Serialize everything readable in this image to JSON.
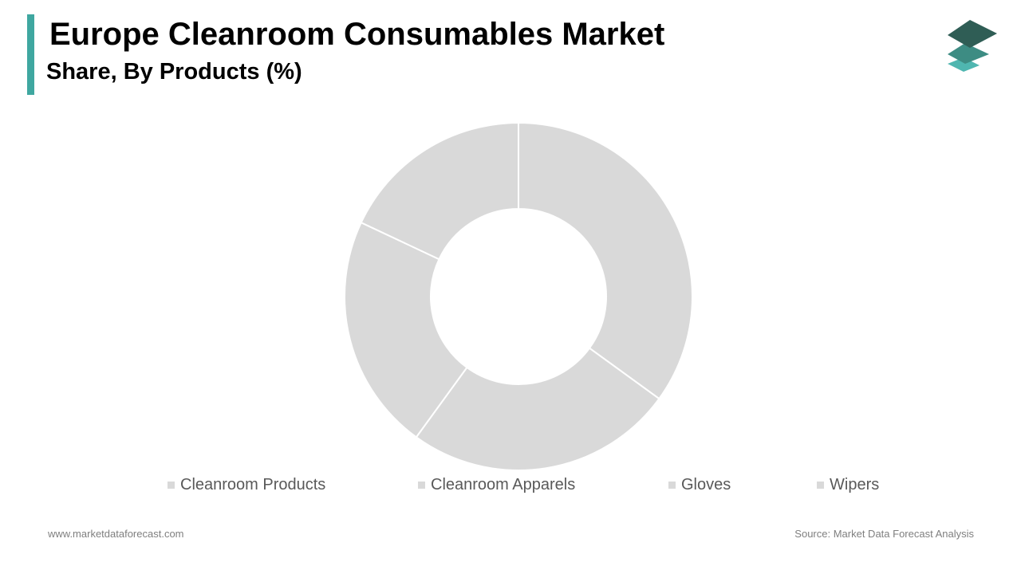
{
  "header": {
    "title": "Europe Cleanroom Consumables Market",
    "subtitle": "Share, By Products (%)"
  },
  "colors": {
    "accent": "#3fa7a0",
    "slice": "#d9d9d9",
    "slice_border": "#ffffff",
    "legend_swatch": "#d9d9d9",
    "logo_top": "#2f5d55",
    "logo_mid": "#3d8c83",
    "logo_bottom": "#4fb6b0"
  },
  "logo": {
    "icon": "stacked-layers-icon"
  },
  "chart_data": {
    "type": "pie",
    "donut": true,
    "categories": [
      "Cleanroom Products",
      "Cleanroom Apparels",
      "Gloves",
      "Wipers"
    ],
    "values": [
      35,
      25,
      22,
      18
    ],
    "legend_position": "bottom"
  },
  "footer": {
    "website": "www.marketdataforecast.com",
    "source": "Source: Market Data Forecast Analysis"
  }
}
